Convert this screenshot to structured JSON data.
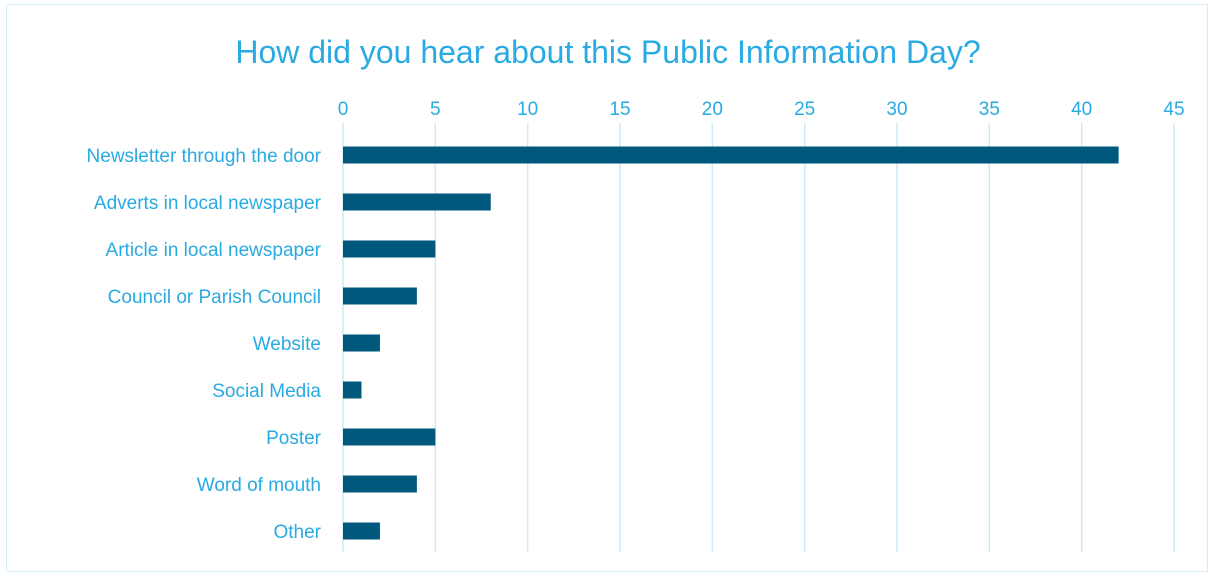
{
  "chart_data": {
    "type": "bar",
    "orientation": "horizontal",
    "title": "How did you hear about this Public Information Day?",
    "xlabel": "",
    "ylabel": "",
    "categories": [
      "Newsletter through the door",
      "Adverts in local newspaper",
      "Article in local newspaper",
      "Council or Parish Council",
      "Website",
      "Social Media",
      "Poster",
      "Word of mouth",
      "Other"
    ],
    "values": [
      42,
      8,
      5,
      4,
      2,
      1,
      5,
      4,
      2
    ],
    "xlim": [
      0,
      45
    ],
    "ticks": [
      "0",
      "5",
      "10",
      "15",
      "20",
      "25",
      "30",
      "35",
      "40",
      "45"
    ],
    "x_axis_position": "top",
    "grid": true,
    "legend": "none",
    "colors": {
      "bar": "#00587c",
      "text": "#29aae2",
      "grid": "#cdeaf8",
      "border": "#d7eef9"
    }
  }
}
